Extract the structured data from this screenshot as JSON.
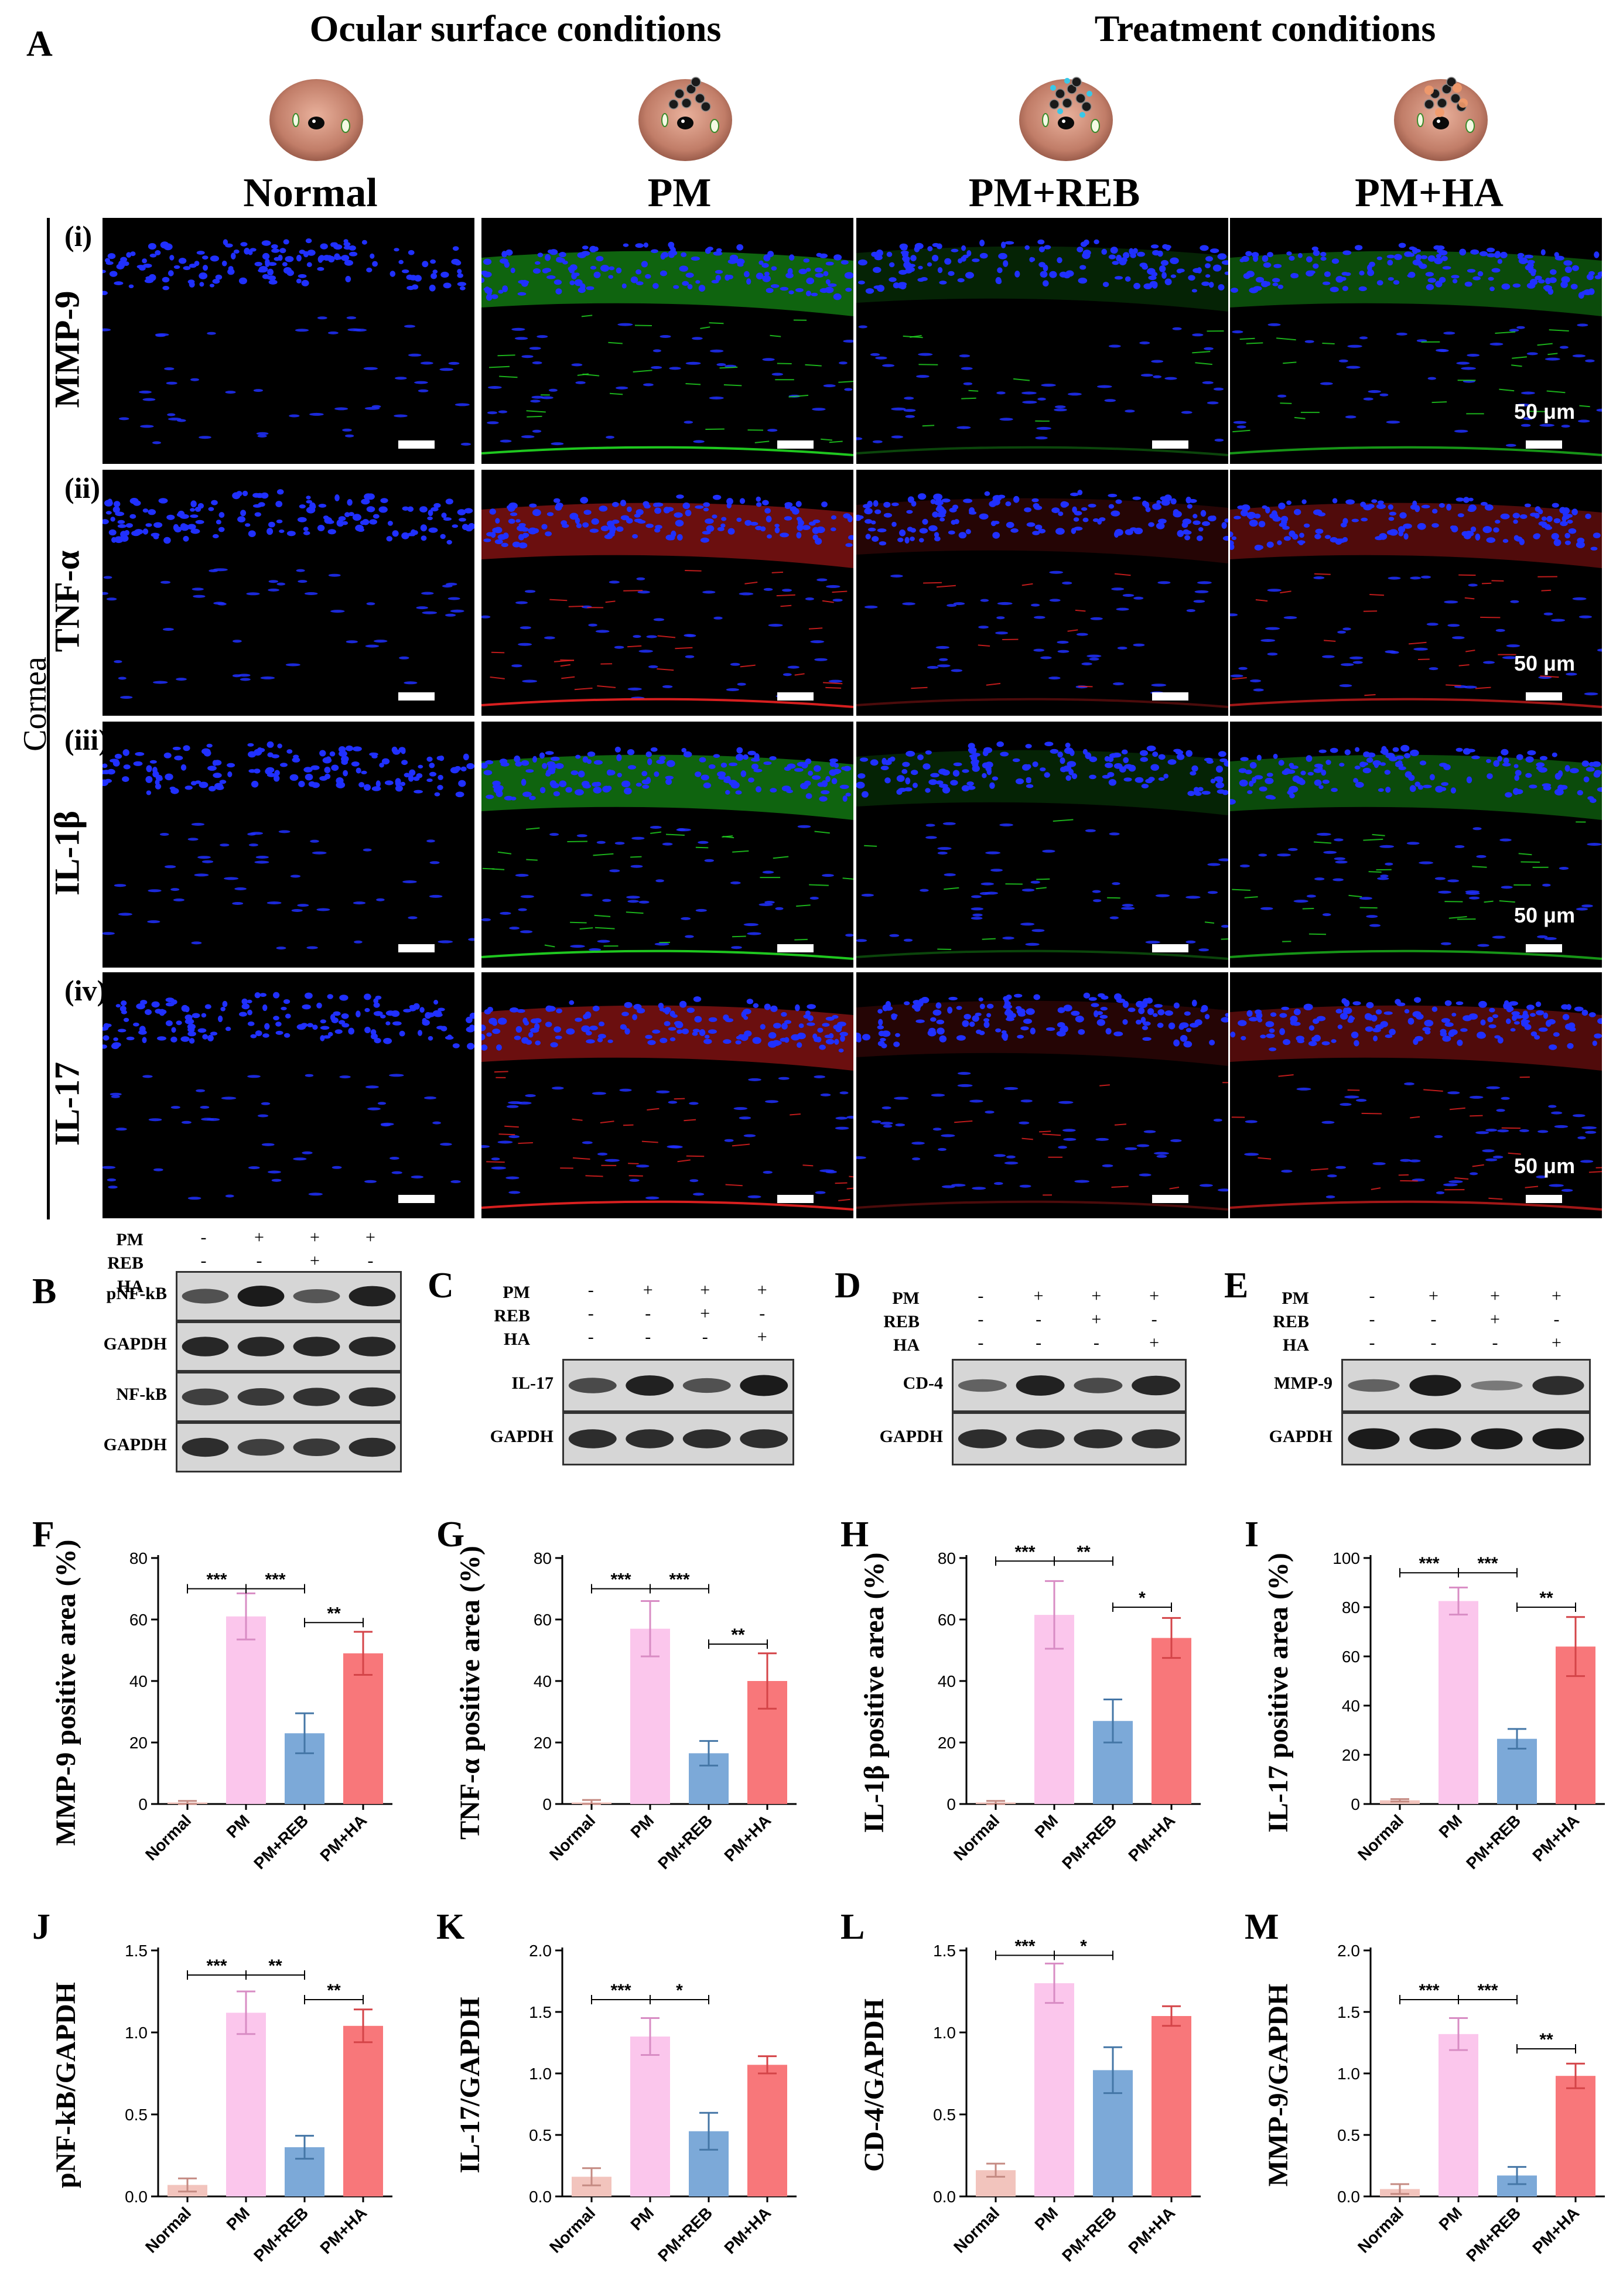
{
  "figure": {
    "panel_a_letter": "A",
    "header_left": "Ocular surface conditions",
    "header_right": "Treatment conditions",
    "conditions": [
      "Normal",
      "PM",
      "PM+REB",
      "PM+HA"
    ],
    "side_label": "Cornea",
    "rows": [
      {
        "roman": "(i)",
        "marker": "MMP-9",
        "color": "#22dd22",
        "scale": "50 μm"
      },
      {
        "roman": "(ii)",
        "marker": "TNF-α",
        "color": "#ee2222",
        "scale": "50 μm"
      },
      {
        "roman": "(iii)",
        "marker": "IL-1β",
        "color": "#22dd22",
        "scale": "50 μm"
      },
      {
        "roman": "(iv)",
        "marker": "IL-17",
        "color": "#ee2222",
        "scale": "50 μm"
      }
    ],
    "nucleus_color": "#2030ff"
  },
  "blots": [
    {
      "letter": "B",
      "treat_labels": [
        "PM",
        "REB",
        "HA"
      ],
      "signs": [
        [
          "-",
          "+",
          "+",
          "+"
        ],
        [
          "-",
          "-",
          "+",
          "-"
        ],
        [
          "-",
          "-",
          "-",
          "+"
        ]
      ],
      "bands": [
        {
          "label": "pNF-kB",
          "intensity": [
            0.55,
            1.0,
            0.5,
            0.95
          ]
        },
        {
          "label": "GAPDH",
          "intensity": [
            0.9,
            0.9,
            0.9,
            0.9
          ]
        },
        {
          "label": "NF-kB",
          "intensity": [
            0.7,
            0.75,
            0.8,
            0.85
          ]
        },
        {
          "label": "GAPDH",
          "intensity": [
            0.85,
            0.7,
            0.75,
            0.85
          ]
        }
      ]
    },
    {
      "letter": "C",
      "treat_labels": [
        "PM",
        "REB",
        "HA"
      ],
      "signs": [
        [
          "-",
          "+",
          "+",
          "+"
        ],
        [
          "-",
          "-",
          "+",
          "-"
        ],
        [
          "-",
          "-",
          "-",
          "+"
        ]
      ],
      "bands": [
        {
          "label": "IL-17",
          "intensity": [
            0.6,
            0.95,
            0.55,
            1.0
          ]
        },
        {
          "label": "GAPDH",
          "intensity": [
            0.85,
            0.85,
            0.85,
            0.85
          ]
        }
      ]
    },
    {
      "letter": "D",
      "treat_labels": [
        "PM",
        "REB",
        "HA"
      ],
      "signs": [
        [
          "-",
          "+",
          "+",
          "+"
        ],
        [
          "-",
          "-",
          "+",
          "-"
        ],
        [
          "-",
          "-",
          "-",
          "+"
        ]
      ],
      "bands": [
        {
          "label": "CD-4",
          "intensity": [
            0.4,
            0.95,
            0.6,
            0.9
          ]
        },
        {
          "label": "GAPDH",
          "intensity": [
            0.85,
            0.85,
            0.85,
            0.85
          ]
        }
      ]
    },
    {
      "letter": "E",
      "treat_labels": [
        "PM",
        "REB",
        "HA"
      ],
      "signs": [
        [
          "-",
          "+",
          "+",
          "+"
        ],
        [
          "-",
          "-",
          "+",
          "-"
        ],
        [
          "-",
          "-",
          "-",
          "+"
        ]
      ],
      "bands": [
        {
          "label": "MMP-9",
          "intensity": [
            0.4,
            1.0,
            0.2,
            0.85
          ]
        },
        {
          "label": "GAPDH",
          "intensity": [
            1.0,
            1.0,
            1.0,
            1.0
          ]
        }
      ]
    }
  ],
  "chart_data": [
    {
      "letter": "F",
      "type": "bar",
      "ylabel": "MMP-9 positive area (%)",
      "categories": [
        "Normal",
        "PM",
        "PM+REB",
        "PM+HA"
      ],
      "values": [
        0.5,
        61,
        23,
        49
      ],
      "errors": [
        0.5,
        7.5,
        6.5,
        7
      ],
      "ylim": [
        0,
        80
      ],
      "yticks": [
        0,
        20,
        40,
        60,
        80
      ],
      "sig": [
        {
          "from": 0,
          "to": 1,
          "label": "***",
          "level": 70
        },
        {
          "from": 1,
          "to": 2,
          "label": "***",
          "level": 70
        },
        {
          "from": 2,
          "to": 3,
          "label": "**",
          "level": 59
        }
      ]
    },
    {
      "letter": "G",
      "type": "bar",
      "ylabel": "TNF-α positive area (%)",
      "categories": [
        "Normal",
        "PM",
        "PM+REB",
        "PM+HA"
      ],
      "values": [
        0.5,
        57,
        16.5,
        40
      ],
      "errors": [
        0.8,
        9,
        4,
        9
      ],
      "ylim": [
        0,
        80
      ],
      "yticks": [
        0,
        20,
        40,
        60,
        80
      ],
      "sig": [
        {
          "from": 0,
          "to": 1,
          "label": "***",
          "level": 70
        },
        {
          "from": 1,
          "to": 2,
          "label": "***",
          "level": 70
        },
        {
          "from": 2,
          "to": 3,
          "label": "**",
          "level": 52
        }
      ]
    },
    {
      "letter": "H",
      "type": "bar",
      "ylabel": "IL-1β positive area (%)",
      "categories": [
        "Normal",
        "PM",
        "PM+REB",
        "PM+HA"
      ],
      "values": [
        0.5,
        61.5,
        27,
        54
      ],
      "errors": [
        0.5,
        11,
        7,
        6.5
      ],
      "ylim": [
        0,
        80
      ],
      "yticks": [
        0,
        20,
        40,
        60,
        80
      ],
      "sig": [
        {
          "from": 0,
          "to": 1,
          "label": "***",
          "level": 79
        },
        {
          "from": 1,
          "to": 2,
          "label": "**",
          "level": 79
        },
        {
          "from": 2,
          "to": 3,
          "label": "*",
          "level": 64
        }
      ]
    },
    {
      "letter": "I",
      "type": "bar",
      "ylabel": "IL-17 positive area (%)",
      "categories": [
        "Normal",
        "PM",
        "PM+REB",
        "PM+HA"
      ],
      "values": [
        1.5,
        82.5,
        26.5,
        64
      ],
      "errors": [
        0.5,
        5.5,
        4,
        12
      ],
      "ylim": [
        0,
        100
      ],
      "yticks": [
        0,
        20,
        40,
        60,
        80,
        100
      ],
      "sig": [
        {
          "from": 0,
          "to": 1,
          "label": "***",
          "level": 94
        },
        {
          "from": 1,
          "to": 2,
          "label": "***",
          "level": 94
        },
        {
          "from": 2,
          "to": 3,
          "label": "**",
          "level": 80
        }
      ]
    },
    {
      "letter": "J",
      "type": "bar",
      "ylabel": "pNF-kB/GAPDH",
      "categories": [
        "Normal",
        "PM",
        "PM+REB",
        "PM+HA"
      ],
      "values": [
        0.07,
        1.12,
        0.3,
        1.04
      ],
      "errors": [
        0.04,
        0.13,
        0.07,
        0.1
      ],
      "ylim": [
        0,
        1.5
      ],
      "yticks": [
        0.0,
        0.5,
        1.0,
        1.5
      ],
      "sig": [
        {
          "from": 0,
          "to": 1,
          "label": "***",
          "level": 1.35
        },
        {
          "from": 1,
          "to": 2,
          "label": "**",
          "level": 1.35
        },
        {
          "from": 2,
          "to": 3,
          "label": "**",
          "level": 1.2
        }
      ]
    },
    {
      "letter": "K",
      "type": "bar",
      "ylabel": "IL-17/GAPDH",
      "categories": [
        "Normal",
        "PM",
        "PM+REB",
        "PM+HA"
      ],
      "values": [
        0.16,
        1.3,
        0.53,
        1.07
      ],
      "errors": [
        0.07,
        0.15,
        0.15,
        0.07
      ],
      "ylim": [
        0,
        2.0
      ],
      "yticks": [
        0.0,
        0.5,
        1.0,
        1.5,
        2.0
      ],
      "sig": [
        {
          "from": 0,
          "to": 1,
          "label": "***",
          "level": 1.6
        },
        {
          "from": 1,
          "to": 2,
          "label": "*",
          "level": 1.6
        }
      ]
    },
    {
      "letter": "L",
      "type": "bar",
      "ylabel": "CD-4/GAPDH",
      "categories": [
        "Normal",
        "PM",
        "PM+REB",
        "PM+HA"
      ],
      "values": [
        0.16,
        1.3,
        0.77,
        1.1
      ],
      "errors": [
        0.04,
        0.12,
        0.14,
        0.06
      ],
      "ylim": [
        0,
        1.5
      ],
      "yticks": [
        0.0,
        0.5,
        1.0,
        1.5
      ],
      "sig": [
        {
          "from": 0,
          "to": 1,
          "label": "***",
          "level": 1.47
        },
        {
          "from": 1,
          "to": 2,
          "label": "*",
          "level": 1.47
        }
      ]
    },
    {
      "letter": "M",
      "type": "bar",
      "ylabel": "MMP-9/GAPDH",
      "categories": [
        "Normal",
        "PM",
        "PM+REB",
        "PM+HA"
      ],
      "values": [
        0.06,
        1.32,
        0.17,
        0.98
      ],
      "errors": [
        0.04,
        0.13,
        0.07,
        0.1
      ],
      "ylim": [
        0,
        2.0
      ],
      "yticks": [
        0.0,
        0.5,
        1.0,
        1.5,
        2.0
      ],
      "sig": [
        {
          "from": 0,
          "to": 1,
          "label": "***",
          "level": 1.6
        },
        {
          "from": 1,
          "to": 2,
          "label": "***",
          "level": 1.6
        },
        {
          "from": 2,
          "to": 3,
          "label": "**",
          "level": 1.2
        }
      ]
    }
  ],
  "bar_colors": [
    "#f2c4bd",
    "#fbc6ec",
    "#7ca9d8",
    "#f8777a"
  ],
  "error_colors": [
    "#c48a82",
    "#d88cc4",
    "#4476a6",
    "#d44448"
  ]
}
